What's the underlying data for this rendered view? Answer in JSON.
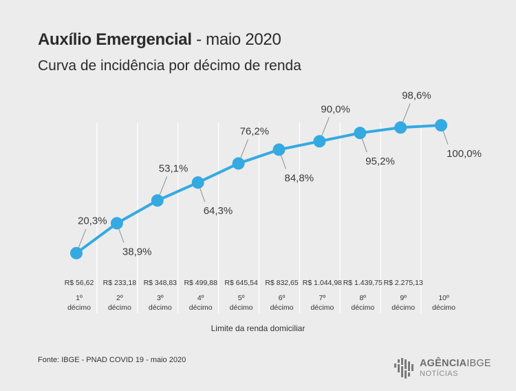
{
  "header": {
    "title_bold": "Auxílio Emergencial",
    "title_rest": "- maio 2020",
    "subtitle": "Curva de incidência por décimo de renda"
  },
  "chart_data": {
    "type": "line",
    "title": "Auxílio Emergencial - maio 2020",
    "subtitle": "Curva de incidência por décimo de renda",
    "xlabel": "Limite da renda domiciliar",
    "ylabel": "",
    "ylim": [
      0,
      100
    ],
    "grid": "vertical separators",
    "line_color": "#35a9e1",
    "categories": [
      {
        "limit": "R$ 56,62",
        "tick1": "1º",
        "tick2": "décimo"
      },
      {
        "limit": "R$ 233,18",
        "tick1": "2º",
        "tick2": "décimo"
      },
      {
        "limit": "R$ 348,83",
        "tick1": "3º",
        "tick2": "décimo"
      },
      {
        "limit": "R$ 499,88",
        "tick1": "4º",
        "tick2": "décimo"
      },
      {
        "limit": "R$ 645,54",
        "tick1": "5º",
        "tick2": "décimo"
      },
      {
        "limit": "R$ 832,65",
        "tick1": "6º",
        "tick2": "décimo"
      },
      {
        "limit": "R$ 1.044,98",
        "tick1": "7º",
        "tick2": "décimo"
      },
      {
        "limit": "R$ 1.439,75",
        "tick1": "8º",
        "tick2": "décimo"
      },
      {
        "limit": "R$ 2.275,13",
        "tick1": "9º",
        "tick2": "décimo"
      },
      {
        "limit": "",
        "tick1": "10º",
        "tick2": "décimo"
      }
    ],
    "values": [
      20.3,
      38.9,
      53.1,
      64.3,
      76.2,
      84.8,
      90.0,
      95.2,
      98.6,
      100.0
    ],
    "value_labels": [
      "20,3%",
      "38,9%",
      "53,1%",
      "64,3%",
      "76,2%",
      "84,8%",
      "90,0%",
      "95,2%",
      "98,6%",
      "100,0%"
    ],
    "label_side": [
      "above",
      "below",
      "above",
      "below",
      "above",
      "below",
      "above",
      "below",
      "above",
      "below"
    ]
  },
  "footer": {
    "source": "Fonte: IBGE - PNAD COVID 19 - maio 2020"
  },
  "logo": {
    "brand_bold": "AGÊNCIA",
    "brand_light": "IBGE",
    "sub": "NOTÍCIAS"
  }
}
